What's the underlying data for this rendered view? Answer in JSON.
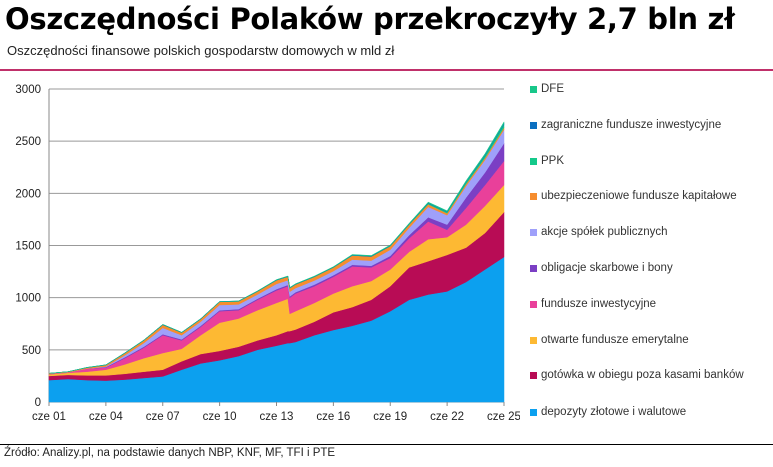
{
  "title": "Oszczędności Polaków przekroczyły 2,7 bln zł",
  "subtitle": "Oszczędności finansowe polskich gospodarstw domowych w mld zł",
  "source": "Źródło: Analizy.pl, na podstawie danych NBP, KNF, MF, TFI i PTE",
  "chart_data": {
    "type": "area",
    "stacked": true,
    "title": "Oszczędności Polaków przekroczyły 2,7 bln zł",
    "ylabel": "mld zł",
    "ylim": [
      0,
      3000
    ],
    "yticks": [
      0,
      500,
      1000,
      1500,
      2000,
      2500,
      3000
    ],
    "xlim": [
      2001.5,
      2025.5
    ],
    "xticks": [
      {
        "value": 2001.5,
        "label": "cze 01"
      },
      {
        "value": 2004.5,
        "label": "cze 04"
      },
      {
        "value": 2007.5,
        "label": "cze 07"
      },
      {
        "value": 2010.5,
        "label": "cze 10"
      },
      {
        "value": 2013.5,
        "label": "cze 13"
      },
      {
        "value": 2016.5,
        "label": "cze 16"
      },
      {
        "value": 2019.5,
        "label": "cze 19"
      },
      {
        "value": 2022.5,
        "label": "cze 22"
      },
      {
        "value": 2025.5,
        "label": "cze 25"
      }
    ],
    "grid": true,
    "legend_position": "right",
    "x": [
      2001.5,
      2002.5,
      2003.5,
      2004.5,
      2005.5,
      2006.5,
      2007.5,
      2008.5,
      2009.5,
      2010.5,
      2011.5,
      2012.5,
      2013.5,
      2014.1,
      2014.2,
      2014.5,
      2015.5,
      2016.5,
      2017.5,
      2018.5,
      2019.5,
      2020.5,
      2021.5,
      2022.5,
      2023.5,
      2024.5,
      2025.5
    ],
    "series": [
      {
        "name": "depozyty złotowe i walutowe",
        "color": "#0ca0ef",
        "values": [
          210,
          220,
          210,
          205,
          215,
          230,
          245,
          310,
          370,
          400,
          440,
          500,
          540,
          565,
          565,
          575,
          640,
          690,
          730,
          780,
          870,
          980,
          1030,
          1060,
          1150,
          1270,
          1390
        ]
      },
      {
        "name": "gotówka w obiegu poza kasami banków",
        "color": "#b80c55",
        "values": [
          40,
          40,
          45,
          50,
          55,
          60,
          65,
          80,
          90,
          90,
          90,
          90,
          100,
          115,
          115,
          120,
          130,
          170,
          180,
          200,
          240,
          310,
          320,
          350,
          330,
          350,
          430
        ]
      },
      {
        "name": "otwarte fundusze emerytalne",
        "color": "#fdb933",
        "values": [
          15,
          20,
          35,
          55,
          90,
          130,
          160,
          120,
          180,
          270,
          270,
          290,
          310,
          310,
          165,
          175,
          180,
          180,
          200,
          180,
          160,
          150,
          210,
          170,
          220,
          260,
          260
        ]
      },
      {
        "name": "fundusze inwestycyjne",
        "color": "#e9409a",
        "values": [
          5,
          5,
          30,
          20,
          60,
          100,
          170,
          80,
          80,
          110,
          80,
          100,
          120,
          120,
          155,
          170,
          160,
          160,
          190,
          130,
          110,
          130,
          170,
          70,
          160,
          200,
          230
        ]
      },
      {
        "name": "obligacje skarbowe i bony",
        "color": "#7b3fc4",
        "values": [
          0,
          0,
          0,
          5,
          8,
          10,
          10,
          10,
          10,
          10,
          10,
          10,
          12,
          12,
          12,
          12,
          15,
          15,
          15,
          15,
          20,
          30,
          40,
          50,
          100,
          120,
          170
        ]
      },
      {
        "name": "akcje spółek publicznych",
        "color": "#9fa0fa",
        "values": [
          0,
          0,
          0,
          5,
          20,
          35,
          60,
          40,
          40,
          50,
          45,
          40,
          50,
          45,
          45,
          40,
          40,
          40,
          50,
          50,
          60,
          70,
          100,
          90,
          110,
          120,
          130
        ]
      },
      {
        "name": "ubezpieczeniowe fundusze kapitałowe",
        "color": "#f68d2e",
        "values": [
          5,
          5,
          10,
          15,
          20,
          25,
          30,
          25,
          25,
          30,
          30,
          30,
          35,
          35,
          35,
          35,
          35,
          35,
          40,
          40,
          35,
          30,
          25,
          20,
          20,
          20,
          20
        ]
      },
      {
        "name": "PPK",
        "color": "#14c98a",
        "values": [
          0,
          0,
          0,
          0,
          0,
          0,
          0,
          0,
          0,
          0,
          0,
          0,
          0,
          0,
          0,
          0,
          0,
          0,
          0,
          0,
          0,
          3,
          8,
          10,
          15,
          20,
          30
        ]
      },
      {
        "name": "zagraniczne fundusze inwestycyjne",
        "color": "#0b6fc0",
        "values": [
          0,
          0,
          2,
          2,
          3,
          3,
          4,
          3,
          3,
          3,
          3,
          3,
          3,
          3,
          3,
          3,
          3,
          3,
          4,
          4,
          4,
          4,
          5,
          5,
          6,
          8,
          10
        ]
      },
      {
        "name": "DFE",
        "color": "#18c78a",
        "values": [
          0,
          0,
          0,
          0,
          0,
          0,
          0,
          0,
          0,
          0,
          0,
          2,
          3,
          3,
          3,
          3,
          4,
          4,
          5,
          5,
          6,
          7,
          8,
          8,
          10,
          12,
          15
        ]
      }
    ]
  }
}
